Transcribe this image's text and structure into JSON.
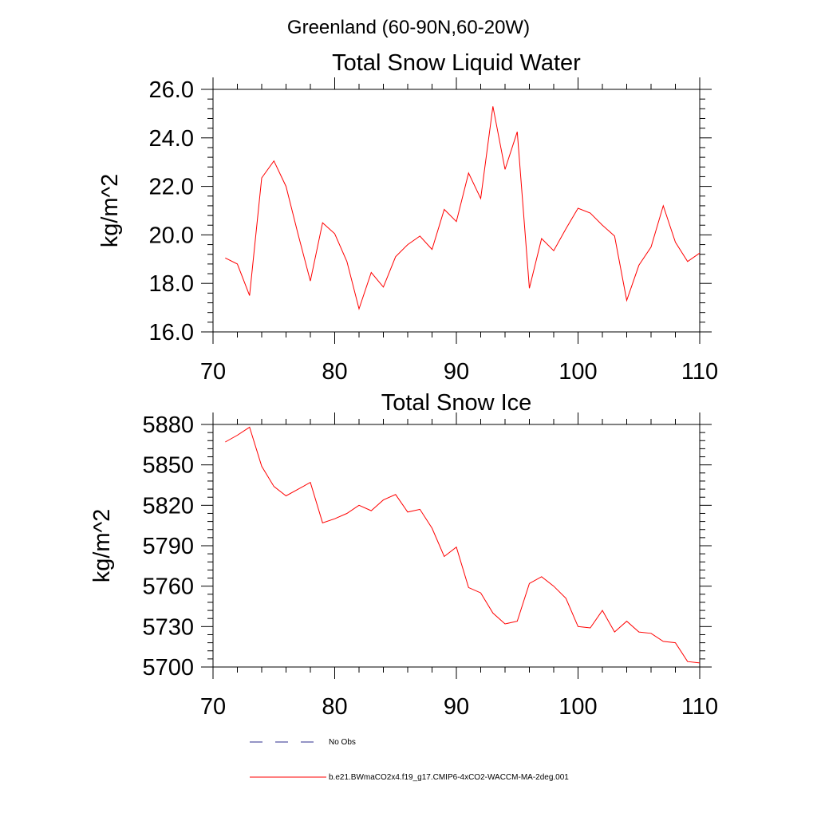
{
  "figure": {
    "title": "Greenland (60-90N,60-20W)"
  },
  "legend": {
    "items": [
      {
        "label": "No Obs",
        "color": "#2b2b8c",
        "dash": "dashed"
      },
      {
        "label": "b.e21.BWmaCO2x4.f19_g17.CMIP6-4xCO2-WACCM-MA-2deg.001",
        "color": "#ff0000",
        "dash": "solid"
      }
    ]
  },
  "chart_data": [
    {
      "type": "line",
      "title": "Total Snow Liquid Water",
      "xlabel": "",
      "ylabel": "kg/m^2",
      "xlim": [
        70,
        110
      ],
      "ylim": [
        16.0,
        26.0
      ],
      "xticks": [
        70,
        80,
        90,
        100,
        110
      ],
      "xtick_labels": [
        "70",
        "80",
        "90",
        "100",
        "110"
      ],
      "yticks": [
        16.0,
        18.0,
        20.0,
        22.0,
        24.0,
        26.0
      ],
      "ytick_labels": [
        "16.0",
        "18.0",
        "20.0",
        "22.0",
        "24.0",
        "26.0"
      ],
      "series": [
        {
          "name": "b.e21.BWmaCO2x4.f19_g17.CMIP6-4xCO2-WACCM-MA-2deg.001",
          "color": "#ff0000",
          "x": [
            71,
            72,
            73,
            74,
            75,
            76,
            77,
            78,
            79,
            80,
            81,
            82,
            83,
            84,
            85,
            86,
            87,
            88,
            89,
            90,
            91,
            92,
            93,
            94,
            95,
            96,
            97,
            98,
            99,
            100,
            101,
            102,
            103,
            104,
            105,
            106,
            107,
            108,
            109,
            110
          ],
          "y": [
            19.05,
            18.8,
            17.5,
            22.35,
            23.05,
            22.0,
            20.0,
            18.1,
            20.5,
            20.05,
            18.9,
            16.95,
            18.45,
            17.85,
            19.1,
            19.6,
            19.95,
            19.4,
            21.05,
            20.55,
            22.55,
            21.5,
            25.3,
            22.7,
            24.25,
            17.8,
            19.85,
            19.35,
            20.25,
            21.1,
            20.9,
            20.4,
            19.95,
            17.3,
            18.75,
            19.5,
            21.2,
            19.7,
            18.9,
            19.25
          ]
        }
      ]
    },
    {
      "type": "line",
      "title": "Total Snow Ice",
      "xlabel": "",
      "ylabel": "kg/m^2",
      "xlim": [
        70,
        110
      ],
      "ylim": [
        5700,
        5880
      ],
      "xticks": [
        70,
        80,
        90,
        100,
        110
      ],
      "xtick_labels": [
        "70",
        "80",
        "90",
        "100",
        "110"
      ],
      "yticks": [
        5700,
        5730,
        5760,
        5790,
        5820,
        5850,
        5880
      ],
      "ytick_labels": [
        "5700",
        "5730",
        "5760",
        "5790",
        "5820",
        "5850",
        "5880"
      ],
      "series": [
        {
          "name": "b.e21.BWmaCO2x4.f19_g17.CMIP6-4xCO2-WACCM-MA-2deg.001",
          "color": "#ff0000",
          "x": [
            71,
            72,
            73,
            74,
            75,
            76,
            77,
            78,
            79,
            80,
            81,
            82,
            83,
            84,
            85,
            86,
            87,
            88,
            89,
            90,
            91,
            92,
            93,
            94,
            95,
            96,
            97,
            98,
            99,
            100,
            101,
            102,
            103,
            104,
            105,
            106,
            107,
            108,
            109,
            110
          ],
          "y": [
            5867,
            5872,
            5878,
            5849,
            5834,
            5827,
            5832,
            5837,
            5807,
            5810,
            5814,
            5820,
            5816,
            5824,
            5828,
            5815,
            5817,
            5803,
            5782,
            5789,
            5759,
            5755,
            5740,
            5732,
            5734,
            5762,
            5767,
            5760,
            5751,
            5730,
            5729,
            5742,
            5726,
            5734,
            5726,
            5725,
            5719,
            5718,
            5704,
            5703
          ]
        }
      ]
    }
  ]
}
